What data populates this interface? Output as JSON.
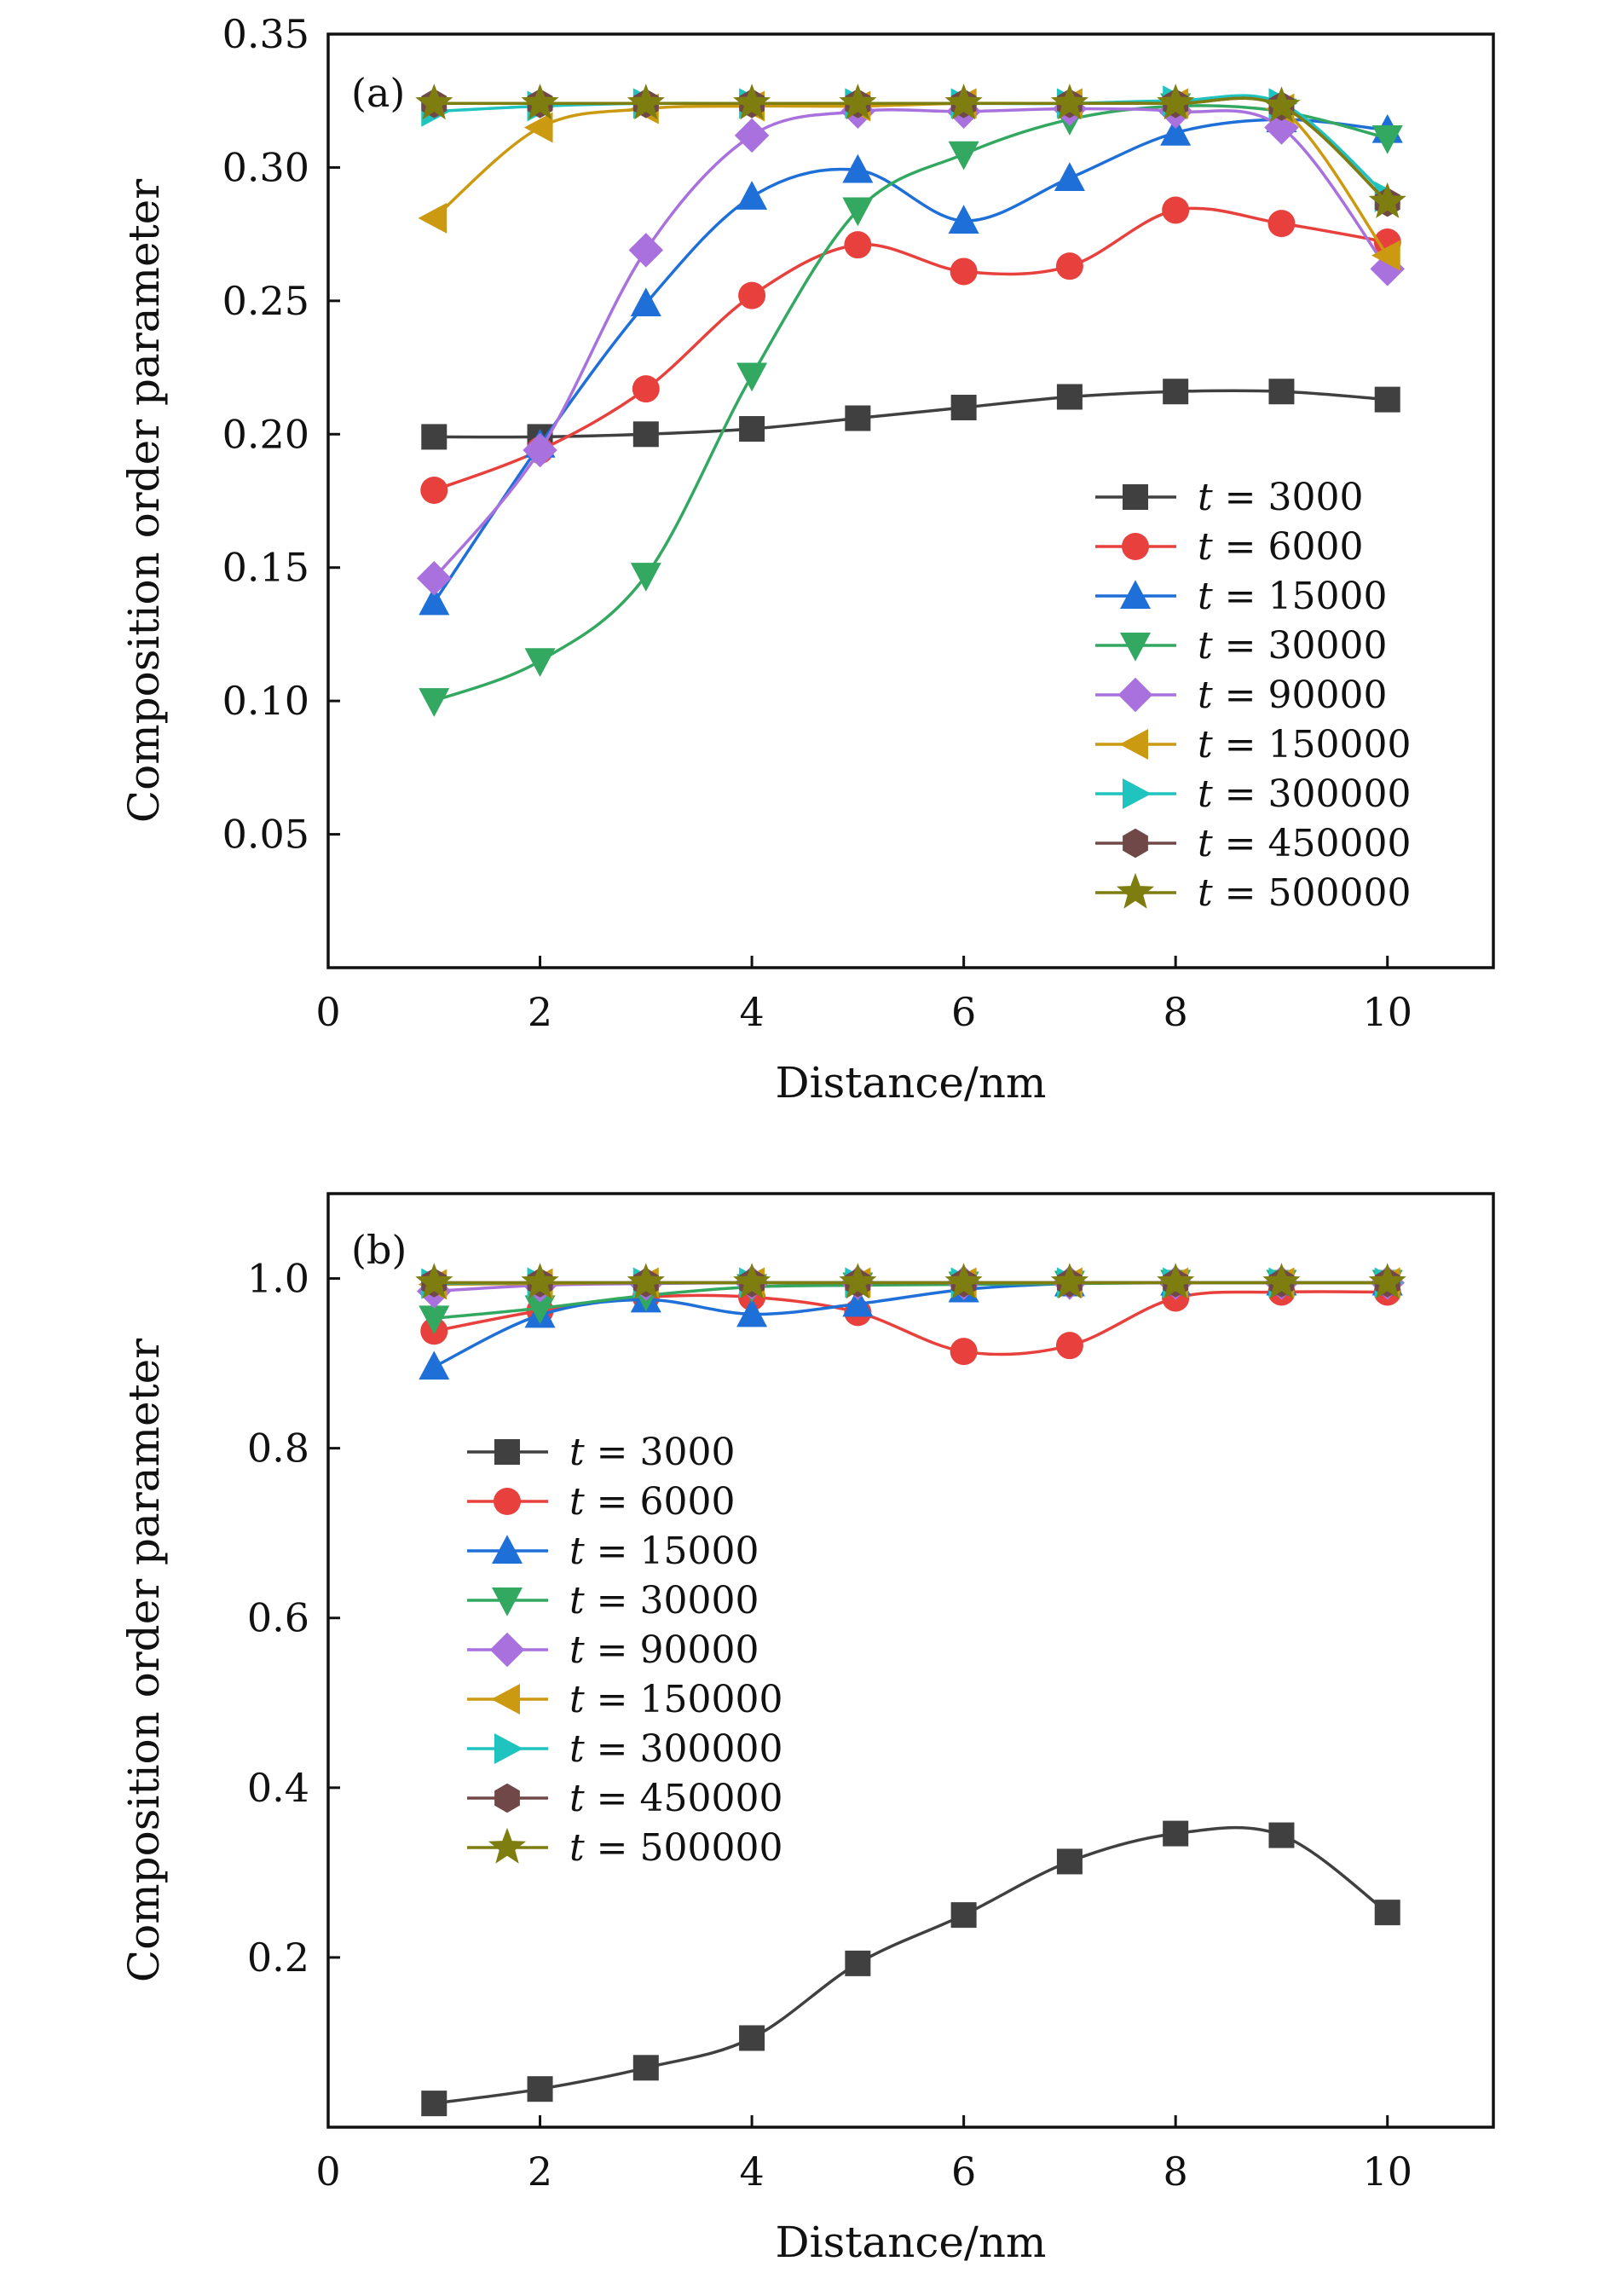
{
  "chart_data": [
    {
      "type": "line",
      "panel_label": "(a)",
      "xlabel": "Distance/nm",
      "ylabel": "Composition order parameter",
      "xlim": [
        0,
        11
      ],
      "ylim": [
        0.0,
        0.35
      ],
      "xticks": [
        "0",
        "2",
        "4",
        "6",
        "8",
        "10"
      ],
      "yticks": [
        "0.05",
        "0.10",
        "0.15",
        "0.20",
        "0.25",
        "0.30",
        "0.35"
      ],
      "legend_position": "lower-right",
      "grid": false,
      "x": [
        1,
        2,
        3,
        4,
        5,
        6,
        7,
        8,
        9,
        10
      ],
      "series": [
        {
          "name": "t = 3000",
          "color": "#404040",
          "marker": "square",
          "values": [
            0.199,
            0.199,
            0.2,
            0.202,
            0.206,
            0.21,
            0.214,
            0.216,
            0.216,
            0.213
          ]
        },
        {
          "name": "t = 6000",
          "color": "#e8403c",
          "marker": "circle",
          "values": [
            0.179,
            0.194,
            0.217,
            0.252,
            0.271,
            0.261,
            0.263,
            0.284,
            0.279,
            0.272
          ]
        },
        {
          "name": "t = 15000",
          "color": "#1f6fd8",
          "marker": "triangle-up",
          "values": [
            0.137,
            0.196,
            0.249,
            0.289,
            0.299,
            0.28,
            0.296,
            0.313,
            0.318,
            0.314
          ]
        },
        {
          "name": "t = 30000",
          "color": "#33a860",
          "marker": "triangle-down",
          "values": [
            0.1,
            0.115,
            0.147,
            0.222,
            0.284,
            0.305,
            0.318,
            0.323,
            0.321,
            0.311
          ]
        },
        {
          "name": "t = 90000",
          "color": "#a971de",
          "marker": "diamond",
          "values": [
            0.146,
            0.194,
            0.269,
            0.312,
            0.321,
            0.321,
            0.322,
            0.321,
            0.315,
            0.262
          ]
        },
        {
          "name": "t = 150000",
          "color": "#cc9a10",
          "marker": "triangle-left",
          "values": [
            0.281,
            0.315,
            0.322,
            0.323,
            0.323,
            0.324,
            0.324,
            0.324,
            0.322,
            0.267
          ]
        },
        {
          "name": "t = 300000",
          "color": "#1fc4c0",
          "marker": "triangle-right",
          "values": [
            0.321,
            0.323,
            0.324,
            0.324,
            0.324,
            0.324,
            0.324,
            0.325,
            0.324,
            0.289
          ]
        },
        {
          "name": "t = 450000",
          "color": "#704848",
          "marker": "hexagon",
          "values": [
            0.324,
            0.324,
            0.324,
            0.324,
            0.324,
            0.324,
            0.324,
            0.324,
            0.323,
            0.287
          ]
        },
        {
          "name": "t = 500000",
          "color": "#7d7d10",
          "marker": "star",
          "values": [
            0.324,
            0.324,
            0.324,
            0.324,
            0.324,
            0.324,
            0.324,
            0.324,
            0.323,
            0.287
          ]
        }
      ]
    },
    {
      "type": "line",
      "panel_label": "(b)",
      "xlabel": "Distance/nm",
      "ylabel": "Composition order parameter",
      "xlim": [
        0,
        11
      ],
      "ylim": [
        0.0,
        1.1
      ],
      "xticks": [
        "0",
        "2",
        "4",
        "6",
        "8",
        "10"
      ],
      "yticks": [
        "0.2",
        "0.4",
        "0.6",
        "0.8",
        "1.0"
      ],
      "legend_position": "center-left",
      "grid": false,
      "x": [
        1,
        2,
        3,
        4,
        5,
        6,
        7,
        8,
        9,
        10
      ],
      "series": [
        {
          "name": "t = 3000",
          "color": "#404040",
          "marker": "square",
          "values": [
            0.028,
            0.045,
            0.07,
            0.105,
            0.193,
            0.25,
            0.313,
            0.346,
            0.344,
            0.253
          ]
        },
        {
          "name": "t = 6000",
          "color": "#e8403c",
          "marker": "circle",
          "values": [
            0.938,
            0.962,
            0.978,
            0.978,
            0.96,
            0.914,
            0.921,
            0.977,
            0.984,
            0.984
          ]
        },
        {
          "name": "t = 15000",
          "color": "#1f6fd8",
          "marker": "triangle-up",
          "values": [
            0.896,
            0.957,
            0.975,
            0.958,
            0.97,
            0.987,
            0.994,
            0.995,
            0.995,
            0.995
          ]
        },
        {
          "name": "t = 30000",
          "color": "#33a860",
          "marker": "triangle-down",
          "values": [
            0.953,
            0.965,
            0.98,
            0.99,
            0.992,
            0.993,
            0.994,
            0.995,
            0.995,
            0.995
          ]
        },
        {
          "name": "t = 90000",
          "color": "#a971de",
          "marker": "diamond",
          "values": [
            0.985,
            0.992,
            0.994,
            0.995,
            0.995,
            0.995,
            0.995,
            0.995,
            0.995,
            0.995
          ]
        },
        {
          "name": "t = 150000",
          "color": "#cc9a10",
          "marker": "triangle-left",
          "values": [
            0.993,
            0.994,
            0.995,
            0.995,
            0.995,
            0.995,
            0.995,
            0.995,
            0.995,
            0.995
          ]
        },
        {
          "name": "t = 300000",
          "color": "#1fc4c0",
          "marker": "triangle-right",
          "values": [
            0.994,
            0.995,
            0.995,
            0.995,
            0.995,
            0.995,
            0.995,
            0.995,
            0.995,
            0.995
          ]
        },
        {
          "name": "t = 450000",
          "color": "#704848",
          "marker": "hexagon",
          "values": [
            0.995,
            0.995,
            0.995,
            0.995,
            0.995,
            0.995,
            0.995,
            0.995,
            0.995,
            0.995
          ]
        },
        {
          "name": "t = 500000",
          "color": "#7d7d10",
          "marker": "star",
          "values": [
            0.995,
            0.995,
            0.995,
            0.995,
            0.995,
            0.995,
            0.995,
            0.995,
            0.995,
            0.995
          ]
        }
      ]
    }
  ]
}
